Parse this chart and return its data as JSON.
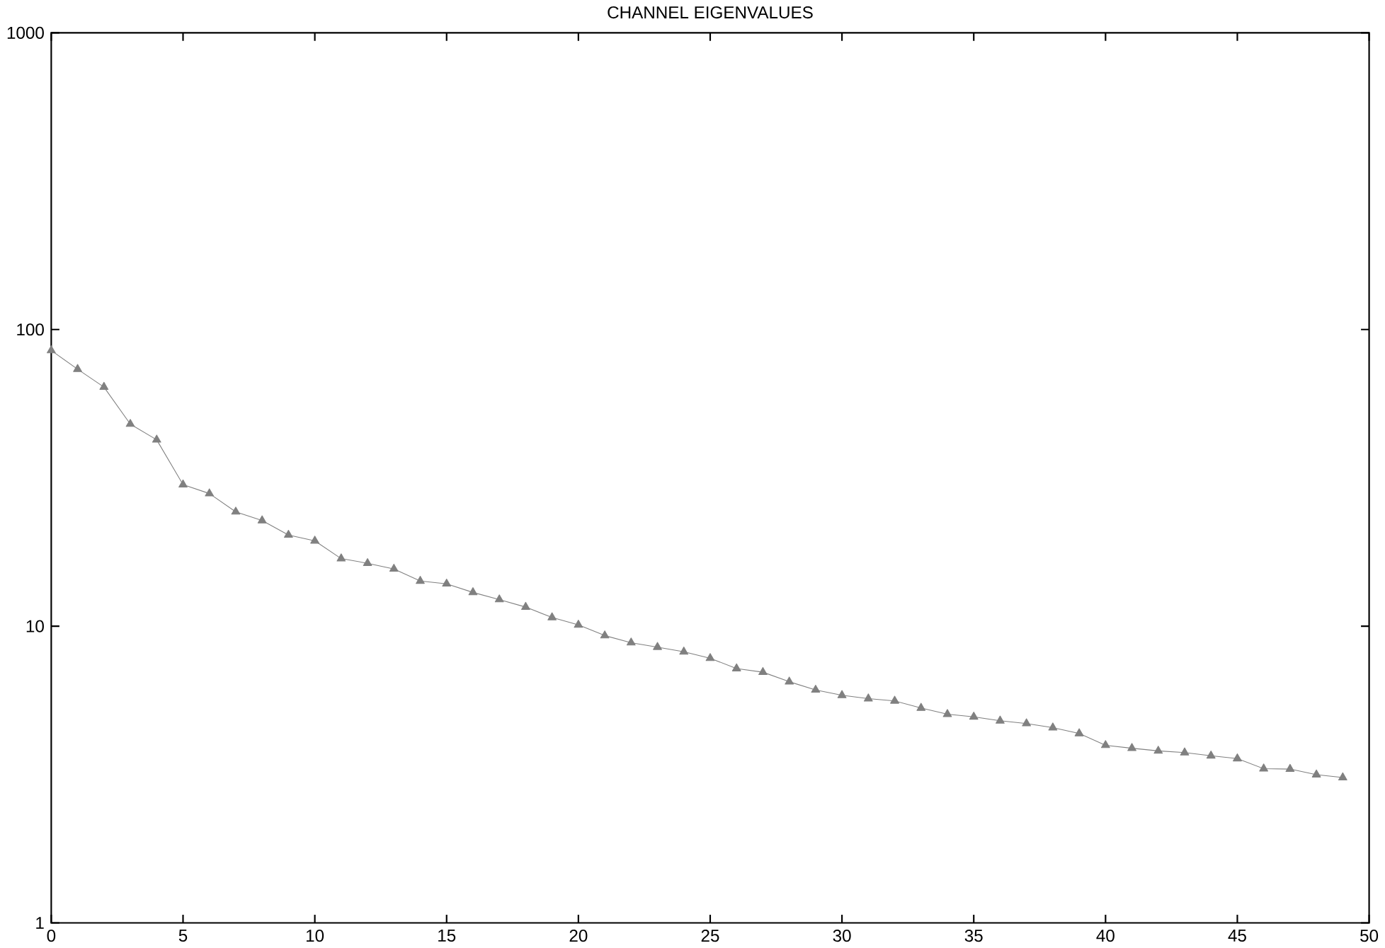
{
  "chart_data": {
    "type": "line",
    "title": "CHANNEL EIGENVALUES",
    "log": "y",
    "marker": "triangle",
    "line_style": "solid",
    "x": [
      0,
      1,
      2,
      3,
      4,
      5,
      6,
      7,
      8,
      9,
      10,
      11,
      12,
      13,
      14,
      15,
      16,
      17,
      18,
      19,
      20,
      21,
      22,
      23,
      24,
      25,
      26,
      27,
      28,
      29,
      30,
      31,
      32,
      33,
      34,
      35,
      36,
      37,
      38,
      39,
      40,
      41,
      42,
      43,
      44,
      45,
      46,
      47,
      48,
      49
    ],
    "series": [
      {
        "color": "#808080",
        "values": [
          85,
          73.5,
          64,
          48,
          42.5,
          30,
          28,
          24.3,
          22.7,
          20.3,
          19.4,
          16.9,
          16.3,
          15.6,
          14.2,
          13.9,
          13.0,
          12.3,
          11.6,
          10.7,
          10.1,
          9.3,
          8.8,
          8.5,
          8.2,
          7.8,
          7.2,
          7.0,
          6.5,
          6.1,
          5.85,
          5.7,
          5.6,
          5.3,
          5.05,
          4.95,
          4.8,
          4.7,
          4.55,
          4.35,
          3.97,
          3.88,
          3.8,
          3.75,
          3.66,
          3.58,
          3.31,
          3.3,
          3.16,
          3.09
        ]
      }
    ],
    "xlim": [
      0,
      50
    ],
    "ylim": [
      1,
      1000
    ],
    "xticks": [
      0,
      5,
      10,
      15,
      20,
      25,
      30,
      35,
      40,
      45,
      50
    ],
    "yticks": [
      1,
      10,
      100,
      1000
    ]
  }
}
